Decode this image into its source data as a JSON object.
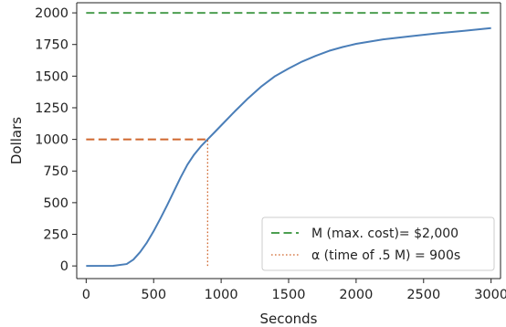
{
  "chart_data": {
    "type": "line",
    "xlabel": "Seconds",
    "ylabel": "Dollars",
    "xlim": [
      -70,
      3070
    ],
    "ylim": [
      -100,
      2080
    ],
    "xticks": [
      0,
      500,
      1000,
      1500,
      2000,
      2500,
      3000
    ],
    "yticks": [
      0,
      250,
      500,
      750,
      1000,
      1250,
      1500,
      1750,
      2000
    ],
    "grid": false,
    "legend_position": "lower-right",
    "series": [
      {
        "color": "#4a7eb8",
        "style": "solid",
        "x": [
          0,
          200,
          300,
          350,
          400,
          450,
          500,
          550,
          600,
          650,
          700,
          750,
          800,
          850,
          900,
          950,
          1000,
          1100,
          1200,
          1300,
          1400,
          1500,
          1600,
          1700,
          1800,
          1900,
          2000,
          2200,
          2400,
          2600,
          2800,
          3000
        ],
        "y": [
          0,
          1,
          15,
          50,
          110,
          185,
          275,
          375,
          480,
          590,
          700,
          800,
          880,
          945,
          1000,
          1055,
          1110,
          1220,
          1325,
          1420,
          1500,
          1560,
          1615,
          1660,
          1700,
          1730,
          1755,
          1790,
          1815,
          1838,
          1858,
          1880
        ]
      },
      {
        "name": "M (max. cost)= $2,000",
        "color": "#4c9f50",
        "style": "dashed",
        "x": [
          0,
          3000
        ],
        "y": [
          2000,
          2000
        ]
      },
      {
        "color": "#d0672e",
        "style": "dashed",
        "x": [
          0,
          900
        ],
        "y": [
          1000,
          1000
        ]
      },
      {
        "name": "α (time of .5 M) = 900s",
        "color": "#d0672e",
        "style": "dotted",
        "x": [
          900,
          900
        ],
        "y": [
          0,
          1000
        ]
      }
    ]
  }
}
